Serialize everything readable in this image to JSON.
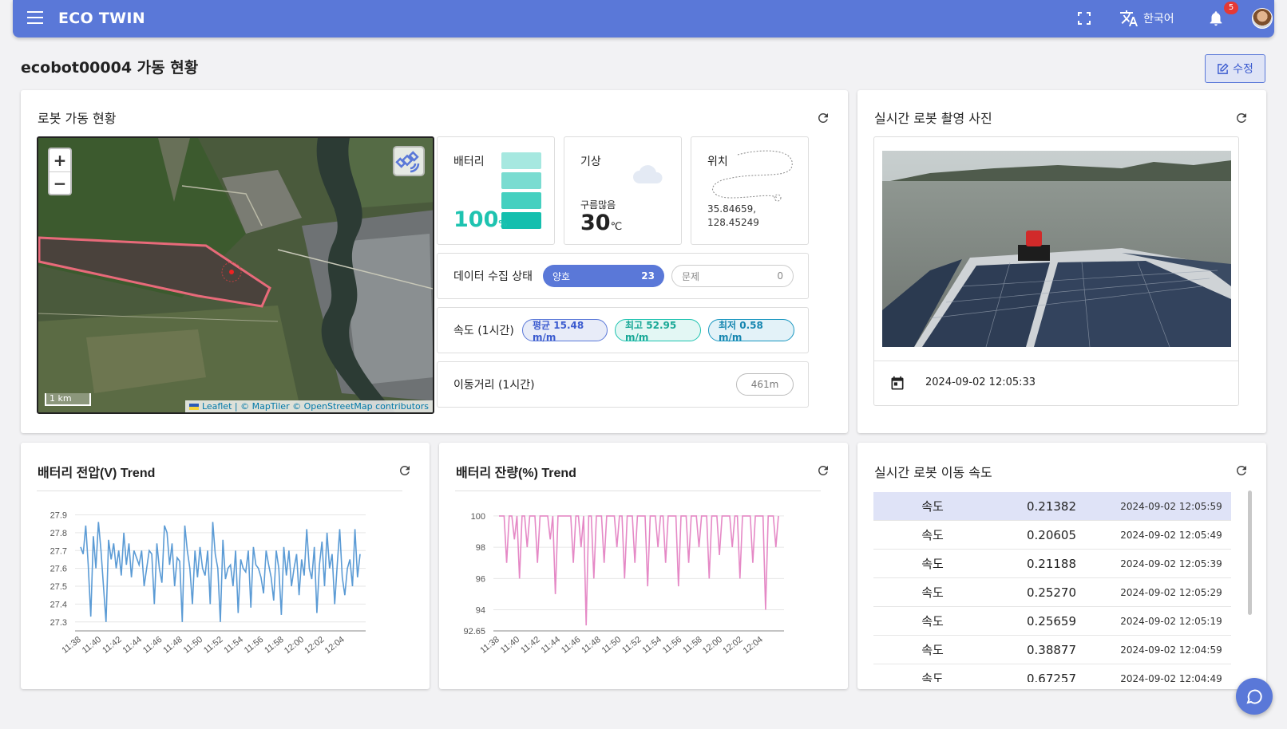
{
  "header": {
    "app_title": "ECO TWIN",
    "language": "한국어",
    "notification_count": "5"
  },
  "page": {
    "title": "ecobot00004 가동 현황",
    "edit_label": "수정"
  },
  "status_card": {
    "title": "로봇 가동 현황",
    "map": {
      "zoom_in": "+",
      "zoom_out": "−",
      "scale": "1 km",
      "attribution_leaflet": "Leaflet",
      "attribution_rest": "| © MapTiler © OpenStreetMap contributors"
    },
    "battery": {
      "label": "배터리",
      "value": "100",
      "unit": "%",
      "level_percent": 100
    },
    "weather": {
      "label": "기상",
      "description": "구름많음",
      "temp": "30",
      "unit": "℃"
    },
    "location": {
      "label": "위치",
      "lat": "35.84659,",
      "lng": "128.45249"
    },
    "data_collection": {
      "label": "데이터 수집 상태",
      "good_label": "양호",
      "good_count": "23",
      "bad_label": "문제",
      "bad_count": "0"
    },
    "speed": {
      "label": "속도 (1시간)",
      "avg": "평균  15.48 m/m",
      "max": "최고  52.95 m/m",
      "min": "최저    0.58 m/m"
    },
    "distance": {
      "label": "이동거리 (1시간)",
      "value": "461m"
    }
  },
  "photo_card": {
    "title": "실시간 로봇 촬영 사진",
    "timestamp": "2024-09-02 12:05:33"
  },
  "voltage_card": {
    "title": "배터리 전압(V) Trend"
  },
  "capacity_card": {
    "title": "배터리 잔량(%) Trend"
  },
  "speed_card": {
    "title": "실시간 로봇 이동 속도",
    "rows": [
      {
        "label": "속도",
        "value": "0.21382",
        "time": "2024-09-02 12:05:59"
      },
      {
        "label": "속도",
        "value": "0.20605",
        "time": "2024-09-02 12:05:49"
      },
      {
        "label": "속도",
        "value": "0.21188",
        "time": "2024-09-02 12:05:39"
      },
      {
        "label": "속도",
        "value": "0.25270",
        "time": "2024-09-02 12:05:29"
      },
      {
        "label": "속도",
        "value": "0.25659",
        "time": "2024-09-02 12:05:19"
      },
      {
        "label": "속도",
        "value": "0.38877",
        "time": "2024-09-02 12:04:59"
      },
      {
        "label": "속도",
        "value": "0.67257",
        "time": "2024-09-02 12:04:49"
      }
    ]
  },
  "colors": {
    "primary": "#5a78d8",
    "teal": "#1ec3b0",
    "voltage_line": "#5b9bd5",
    "capacity_line": "#e589c6"
  },
  "chart_data": [
    {
      "type": "line",
      "title": "배터리 전압(V) Trend",
      "x_ticks": [
        "11:38",
        "11:40",
        "11:42",
        "11:44",
        "11:46",
        "11:48",
        "11:50",
        "11:52",
        "11:54",
        "11:56",
        "11:58",
        "12:00",
        "12:02",
        "12:04"
      ],
      "y_ticks": [
        27.3,
        27.4,
        27.5,
        27.6,
        27.7,
        27.8,
        27.9
      ],
      "ylim": [
        27.25,
        27.92
      ],
      "series": [
        {
          "values": [
            27.72,
            27.68,
            27.84,
            27.62,
            27.33,
            27.78,
            27.6,
            27.86,
            27.7,
            27.5,
            27.3,
            27.76,
            27.65,
            27.74,
            27.6,
            27.7,
            27.56,
            27.8,
            27.62,
            27.74,
            27.55,
            27.7,
            27.66,
            27.62,
            27.7,
            27.5,
            27.6,
            27.7,
            27.68,
            27.4,
            27.74,
            27.6,
            27.52,
            27.84,
            27.8,
            27.62,
            27.74,
            27.5,
            27.66,
            27.64,
            27.3,
            27.84,
            27.7,
            27.6,
            27.4,
            27.7,
            27.55,
            27.72,
            27.6,
            27.56,
            27.7,
            27.4,
            27.86,
            27.68,
            27.6,
            27.3,
            27.76,
            27.54,
            27.6,
            27.62,
            27.5,
            27.7,
            27.35,
            27.65,
            27.6,
            27.58,
            27.7,
            27.38,
            27.72,
            27.62,
            27.6,
            27.55,
            27.46,
            27.7,
            27.62,
            27.55,
            27.42,
            27.7,
            27.6,
            27.34,
            27.72,
            27.56,
            27.7,
            27.5,
            27.6,
            27.68,
            27.45,
            27.65,
            27.56,
            27.82,
            27.6,
            27.54,
            27.72,
            27.35,
            27.62,
            27.75,
            27.5,
            27.8,
            27.6,
            27.68,
            27.4,
            27.62,
            27.82,
            27.55,
            27.45,
            27.6,
            27.65,
            27.5,
            27.82,
            27.55,
            27.68
          ]
        }
      ]
    },
    {
      "type": "line",
      "title": "배터리 잔량(%) Trend",
      "x_ticks": [
        "11:38",
        "11:40",
        "11:42",
        "11:44",
        "11:46",
        "11:48",
        "11:50",
        "11:52",
        "11:54",
        "11:56",
        "11:58",
        "12:00",
        "12:02",
        "12:04"
      ],
      "y_ticks": [
        92.65,
        94,
        96,
        98,
        100
      ],
      "ylim": [
        92.65,
        100.3
      ],
      "series": [
        {
          "values": [
            100,
            100,
            100,
            97,
            100,
            100,
            98.5,
            100,
            96,
            100,
            100,
            98,
            100,
            100,
            100,
            97,
            100,
            100,
            100,
            100,
            98.5,
            100,
            95,
            100,
            100,
            100,
            100,
            100,
            100,
            97,
            100,
            100,
            98,
            100,
            93,
            100,
            100,
            96,
            100,
            100,
            100,
            97,
            100,
            100,
            100,
            100,
            98,
            100,
            100,
            96,
            100,
            100,
            100,
            97,
            100,
            100,
            100,
            100,
            95.5,
            100,
            100,
            100,
            98,
            100,
            100,
            97,
            100,
            100,
            100,
            100,
            95.5,
            100,
            100,
            100,
            97,
            100,
            100,
            100,
            98,
            100,
            100,
            100,
            96,
            100,
            100,
            100,
            97.5,
            100,
            100,
            100,
            100,
            98,
            100,
            100,
            96,
            100,
            100,
            100,
            100,
            97,
            100,
            100,
            100,
            100,
            94,
            100,
            100,
            100,
            98,
            100
          ]
        }
      ]
    }
  ]
}
